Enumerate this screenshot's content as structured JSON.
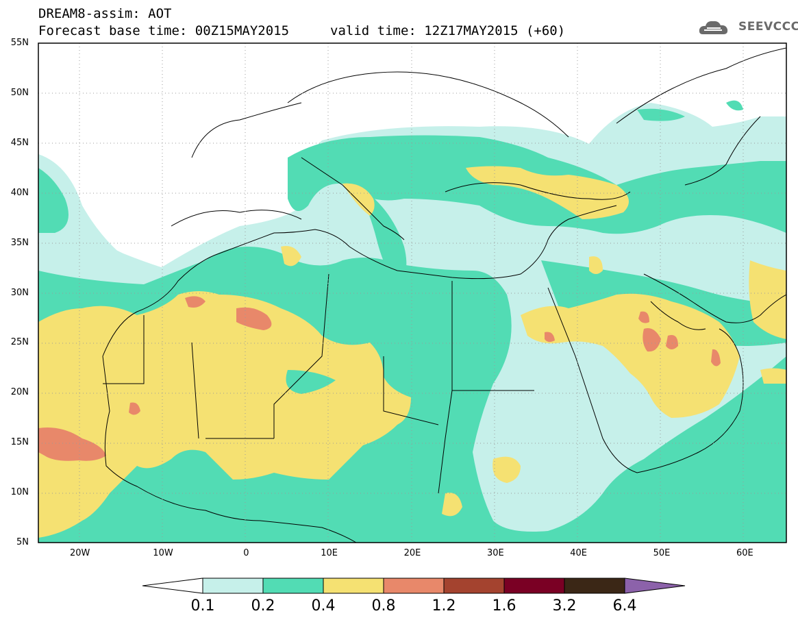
{
  "header": {
    "title_line1": "DREAM8-assim: AOT",
    "title_line2": "Forecast base time: 00Z15MAY2015",
    "valid_time": "valid time: 12Z17MAY2015 (+60)",
    "logo_text": "SEEVCCC"
  },
  "map": {
    "lon_range": [
      -25,
      65
    ],
    "lat_range": [
      5,
      55
    ],
    "lat_ticks": [
      "55N",
      "50N",
      "45N",
      "40N",
      "35N",
      "30N",
      "25N",
      "20N",
      "15N",
      "10N",
      "5N"
    ],
    "lon_ticks": [
      "20W",
      "10W",
      "0",
      "10E",
      "20E",
      "30E",
      "40E",
      "50E",
      "60E"
    ],
    "variable": "Aerosol Optical Thickness"
  },
  "colorbar": {
    "labels": [
      "0.1",
      "0.2",
      "0.4",
      "0.8",
      "1.2",
      "1.6",
      "3.2",
      "6.4"
    ],
    "colors": [
      "#ffffff",
      "#c6f0ea",
      "#52dcb4",
      "#f5e172",
      "#e8886a",
      "#a4432f",
      "#7a0024",
      "#3b2716",
      "#8c62aa"
    ]
  }
}
